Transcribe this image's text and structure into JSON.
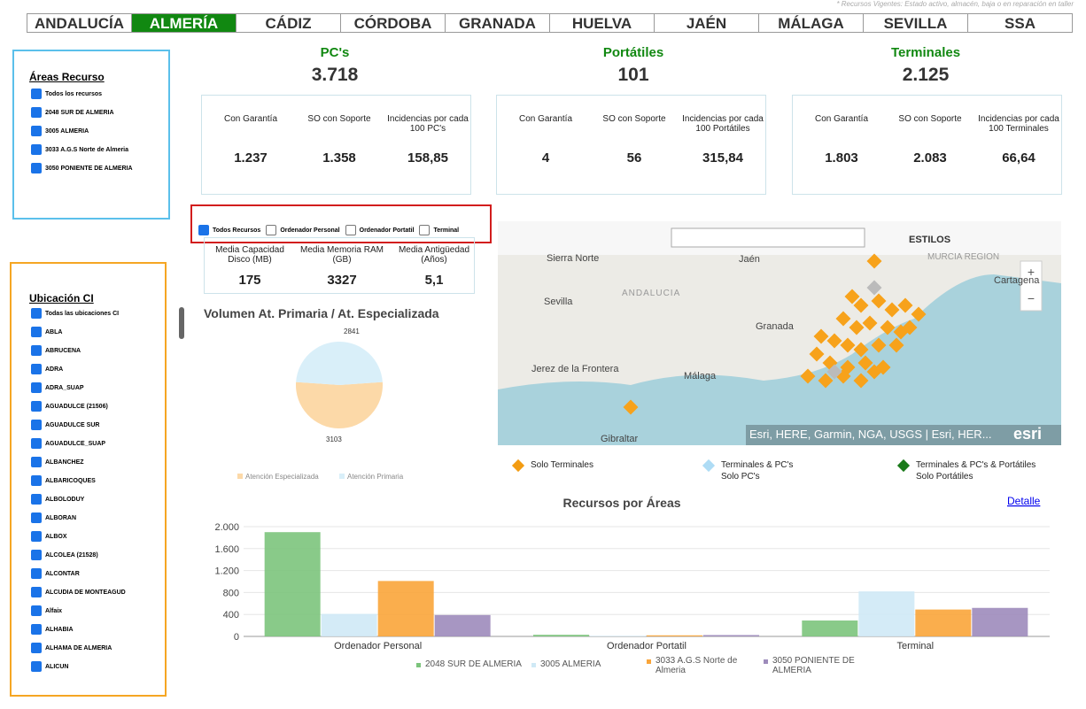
{
  "note": "* Recursos Vigentes: Estado activo, almacén, baja o en reparación en taller",
  "tabs": {
    "items": [
      "ANDALUCÍA",
      "ALMERÍA",
      "CÁDIZ",
      "CÓRDOBA",
      "GRANADA",
      "HUELVA",
      "JAÉN",
      "MÁLAGA",
      "SEVILLA",
      "SSA"
    ],
    "active": 1
  },
  "areas": {
    "title": "Áreas Recurso",
    "items": [
      "Todos los recursos",
      "2048 SUR DE ALMERIA",
      "3005 ALMERIA",
      "3033 A.G.S Norte de Almeria",
      "3050 PONIENTE DE ALMERIA"
    ]
  },
  "ubicacion": {
    "title": "Ubicación CI",
    "items": [
      "Todas las ubicaciones CI",
      "ABLA",
      "ABRUCENA",
      "ADRA",
      "ADRA_SUAP",
      "AGUADULCE (21506)",
      "AGUADULCE SUR",
      "AGUADULCE_SUAP",
      "ALBANCHEZ",
      "ALBARICOQUES",
      "ALBOLODUY",
      "ALBORAN",
      "ALBOX",
      "ALCOLEA (21528)",
      "ALCONTAR",
      "ALCUDIA DE MONTEAGUD",
      "Alfaix",
      "ALHABIA",
      "ALHAMA DE ALMERIA",
      "ALICUN"
    ]
  },
  "kpis": [
    {
      "title": "PC's",
      "total": "3.718",
      "metrics": [
        {
          "label": "Con Garantía",
          "value": "1.237"
        },
        {
          "label": "SO con Soporte",
          "value": "1.358"
        },
        {
          "label": "Incidencias por cada 100 PC's",
          "value": "158,85"
        }
      ]
    },
    {
      "title": "Portátiles",
      "total": "101",
      "metrics": [
        {
          "label": "Con Garantía",
          "value": "4"
        },
        {
          "label": "SO con Soporte",
          "value": "56"
        },
        {
          "label": "Incidencias por cada 100 Portátiles",
          "value": "315,84"
        }
      ]
    },
    {
      "title": "Terminales",
      "total": "2.125",
      "metrics": [
        {
          "label": "Con Garantía",
          "value": "1.803"
        },
        {
          "label": "SO con Soporte",
          "value": "2.083"
        },
        {
          "label": "Incidencias por cada 100 Terminales",
          "value": "66,64"
        }
      ]
    }
  ],
  "filters": {
    "items": [
      "Todos Recursos",
      "Ordenador Personal",
      "Ordenador Portatil",
      "Terminal"
    ],
    "checked": [
      true,
      false,
      false,
      false
    ]
  },
  "media": [
    {
      "label": "Media Capacidad Disco (MB)",
      "value": "175"
    },
    {
      "label": "Media Memoria RAM (GB)",
      "value": "3327"
    },
    {
      "label": "Media Antigüedad (Años)",
      "value": "5,1"
    }
  ],
  "pie": {
    "title": "Volumen At. Primaria / At. Especializada",
    "slices": [
      {
        "name": "Atención Especializada",
        "value": 3103,
        "color": "#fcd9a8"
      },
      {
        "name": "Atención Primaria",
        "value": 2841,
        "color": "#d9eff9"
      }
    ]
  },
  "map": {
    "styles": "ESTILOS",
    "places": [
      "Sierra Norte",
      "Jaén",
      "MURCIA REGION",
      "Cartagena",
      "ANDALUCIA",
      "Sevilla",
      "Granada",
      "Jerez de la Frontera",
      "Málaga",
      "Gibraltar"
    ],
    "attribution": "Esri, HERE, Garmin, NGA, USGS | Esri, HER...",
    "logo": "esri",
    "legend": [
      {
        "label": "Solo Terminales",
        "color": "#f39c12"
      },
      {
        "label": "Terminales & PC's\nSolo PC's",
        "color": "#aedcf5"
      },
      {
        "label": "Terminales & PC's & Portátiles\nSolo Portátiles",
        "color": "#1a7a1a"
      }
    ]
  },
  "bar_chart": {
    "type": "bar",
    "title": "Recursos por Áreas",
    "link": "Detalle",
    "categories": [
      "Ordenador Personal",
      "Ordenador Portatil",
      "Terminal"
    ],
    "series": [
      {
        "name": "2048 SUR DE ALMERIA",
        "color": "#7cc47c",
        "values": [
          1900,
          30,
          290
        ]
      },
      {
        "name": "3005 ALMERIA",
        "color": "#cfe9f6",
        "values": [
          410,
          10,
          820
        ]
      },
      {
        "name": "3033 A.G.S Norte de Almeria",
        "color": "#f9a53a",
        "values": [
          1010,
          20,
          490
        ]
      },
      {
        "name": "3050 PONIENTE DE ALMERIA",
        "color": "#9d8bbb",
        "values": [
          390,
          25,
          520
        ]
      }
    ],
    "ylim": [
      0,
      2000
    ],
    "yticks": [
      0,
      400,
      800,
      {
        "value": 1200,
        "label": "1.200"
      },
      {
        "value": 1600,
        "label": "1.600"
      },
      {
        "value": 2000,
        "label": "2.000"
      }
    ]
  }
}
